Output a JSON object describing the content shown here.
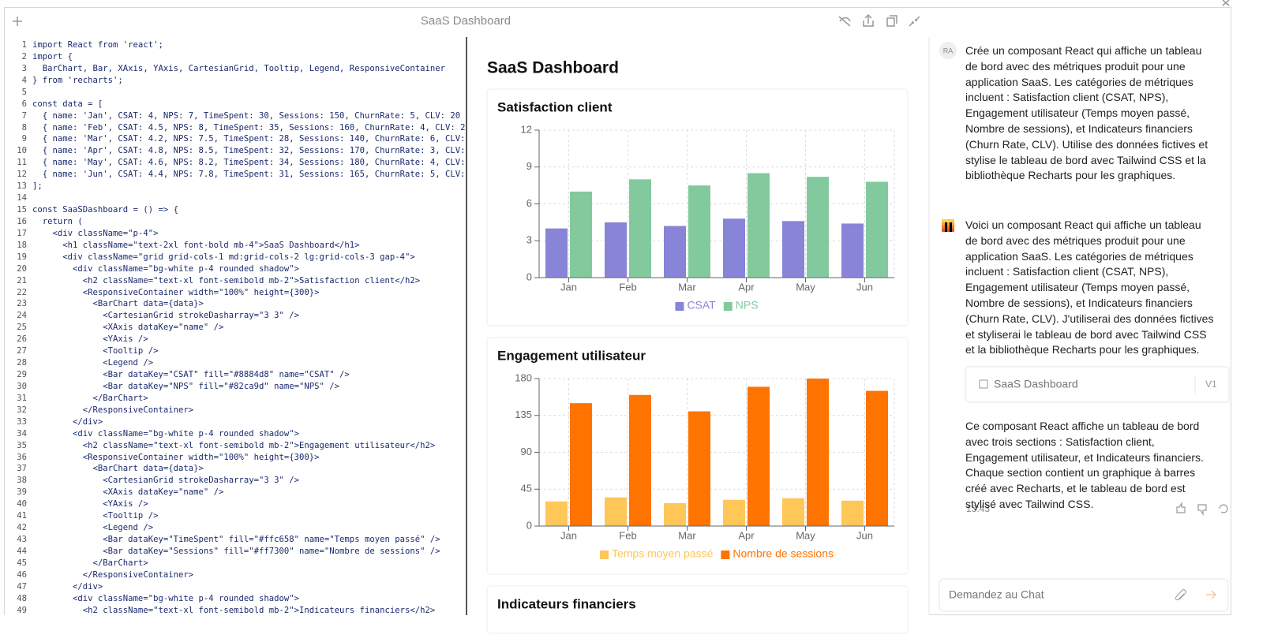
{
  "header": {
    "title": "SaaS Dashboard"
  },
  "code": {
    "line_numbers": [
      1,
      2,
      3,
      4,
      5,
      6,
      7,
      8,
      9,
      10,
      11,
      12,
      13,
      14,
      15,
      16,
      17,
      18,
      19,
      20,
      21,
      22,
      23,
      24,
      25,
      26,
      27,
      28,
      29,
      30,
      31,
      32,
      33,
      34,
      35,
      36,
      37,
      38,
      39,
      40,
      41,
      42,
      43,
      44,
      45,
      46,
      47,
      48,
      49
    ],
    "lines": [
      "import React from 'react';",
      "import {",
      "  BarChart, Bar, XAxis, YAxis, CartesianGrid, Tooltip, Legend, ResponsiveContainer",
      "} from 'recharts';",
      null,
      "const data = [",
      "  { name: 'Jan', CSAT: 4, NPS: 7, TimeSpent: 30, Sessions: 150, ChurnRate: 5, CLV: 20",
      "  { name: 'Feb', CSAT: 4.5, NPS: 8, TimeSpent: 35, Sessions: 160, ChurnRate: 4, CLV: 2",
      "  { name: 'Mar', CSAT: 4.2, NPS: 7.5, TimeSpent: 28, Sessions: 140, ChurnRate: 6, CLV:",
      "  { name: 'Apr', CSAT: 4.8, NPS: 8.5, TimeSpent: 32, Sessions: 170, ChurnRate: 3, CLV:",
      "  { name: 'May', CSAT: 4.6, NPS: 8.2, TimeSpent: 34, Sessions: 180, ChurnRate: 4, CLV:",
      "  { name: 'Jun', CSAT: 4.4, NPS: 7.8, TimeSpent: 31, Sessions: 165, ChurnRate: 5, CLV:",
      "];",
      null,
      "const SaaSDashboard = () => {",
      "  return (",
      "    <div className=\"p-4\">",
      "      <h1 className=\"text-2xl font-bold mb-4\">SaaS Dashboard</h1>",
      "      <div className=\"grid grid-cols-1 md:grid-cols-2 lg:grid-cols-3 gap-4\">",
      "        <div className=\"bg-white p-4 rounded shadow\">",
      "          <h2 className=\"text-xl font-semibold mb-2\">Satisfaction client</h2>",
      "          <ResponsiveContainer width=\"100%\" height={300}>",
      "            <BarChart data={data}>",
      "              <CartesianGrid strokeDasharray=\"3 3\" />",
      "              <XAxis dataKey=\"name\" />",
      "              <YAxis />",
      "              <Tooltip />",
      "              <Legend />",
      "              <Bar dataKey=\"CSAT\" fill=\"#8884d8\" name=\"CSAT\" />",
      "              <Bar dataKey=\"NPS\" fill=\"#82ca9d\" name=\"NPS\" />",
      "            </BarChart>",
      "          </ResponsiveContainer>",
      "        </div>",
      "        <div className=\"bg-white p-4 rounded shadow\">",
      "          <h2 className=\"text-xl font-semibold mb-2\">Engagement utilisateur</h2>",
      "          <ResponsiveContainer width=\"100%\" height={300}>",
      "            <BarChart data={data}>",
      "              <CartesianGrid strokeDasharray=\"3 3\" />",
      "              <XAxis dataKey=\"name\" />",
      "              <YAxis />",
      "              <Tooltip />",
      "              <Legend />",
      "              <Bar dataKey=\"TimeSpent\" fill=\"#ffc658\" name=\"Temps moyen passé\" />",
      "              <Bar dataKey=\"Sessions\" fill=\"#ff7300\" name=\"Nombre de sessions\" />",
      "            </BarChart>",
      "          </ResponsiveContainer>",
      "        </div>",
      "        <div className=\"bg-white p-4 rounded shadow\">",
      "          <h2 className=\"text-xl font-semibold mb-2\">Indicateurs financiers</h2>"
    ]
  },
  "dashboard": {
    "title": "SaaS Dashboard",
    "section3_title": "Indicateurs financiers"
  },
  "chart_data": [
    {
      "type": "bar",
      "title": "Satisfaction client",
      "categories": [
        "Jan",
        "Feb",
        "Mar",
        "Apr",
        "May",
        "Jun"
      ],
      "series": [
        {
          "name": "CSAT",
          "color": "#8884d8",
          "values": [
            4,
            4.5,
            4.2,
            4.8,
            4.6,
            4.4
          ]
        },
        {
          "name": "NPS",
          "color": "#82ca9d",
          "values": [
            7,
            8,
            7.5,
            8.5,
            8.2,
            7.8
          ]
        }
      ],
      "ylim": [
        0,
        12
      ],
      "yticks": [
        0,
        3,
        6,
        9,
        12
      ],
      "grid": true,
      "legend": "bottom"
    },
    {
      "type": "bar",
      "title": "Engagement utilisateur",
      "categories": [
        "Jan",
        "Feb",
        "Mar",
        "Apr",
        "May",
        "Jun"
      ],
      "series": [
        {
          "name": "Temps moyen passé",
          "color": "#ffc658",
          "values": [
            30,
            35,
            28,
            32,
            34,
            31
          ]
        },
        {
          "name": "Nombre de sessions",
          "color": "#ff7300",
          "values": [
            150,
            160,
            140,
            170,
            180,
            165
          ]
        }
      ],
      "ylim": [
        0,
        180
      ],
      "yticks": [
        0,
        45,
        90,
        135,
        180
      ],
      "grid": true,
      "legend": "bottom"
    }
  ],
  "chat": {
    "user_avatar": "RA",
    "messages": [
      "Crée un composant React qui affiche un tableau de bord avec des métriques produit pour une application SaaS. Les catégories de métriques incluent : Satisfaction client (CSAT, NPS), Engagement utilisateur (Temps moyen passé, Nombre de sessions), et Indicateurs financiers (Churn Rate, CLV). Utilise des données fictives et stylise le tableau de bord avec Tailwind CSS et la bibliothèque Recharts pour les graphiques.",
      "Voici un composant React qui affiche un tableau de bord avec des métriques produit pour une application SaaS. Les catégories de métriques incluent : Satisfaction client (CSAT, NPS), Engagement utilisateur (Temps moyen passé, Nombre de sessions), et Indicateurs financiers (Churn Rate, CLV). J'utiliserai des données fictives et styliserai le tableau de bord avec Tailwind CSS et la bibliothèque Recharts pour les graphiques.",
      "Ce composant React affiche un tableau de bord avec trois sections : Satisfaction client, Engagement utilisateur, et Indicateurs financiers. Chaque section contient un graphique à barres créé avec Recharts, et le tableau de bord est stylisé avec Tailwind CSS."
    ],
    "artifact": {
      "title": "SaaS Dashboard",
      "version": "V1"
    },
    "time": "13:43",
    "input_placeholder": "Demandez au Chat"
  }
}
